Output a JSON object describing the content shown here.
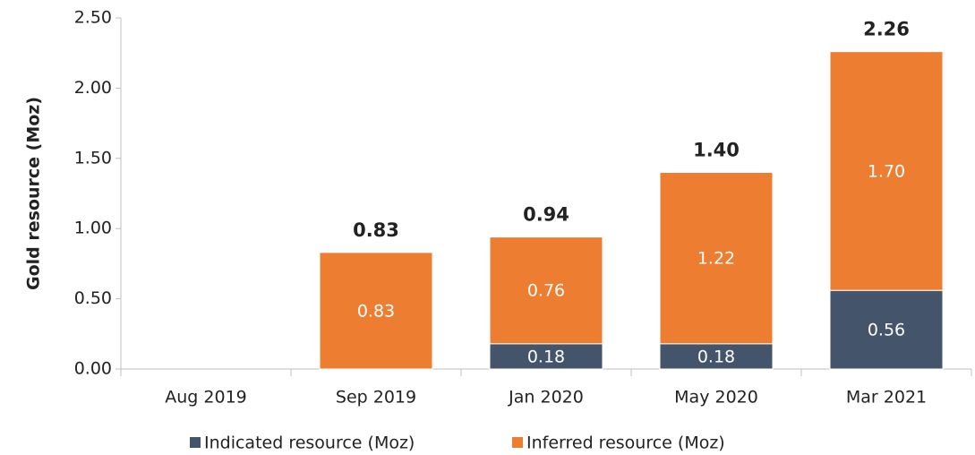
{
  "chart_data": {
    "type": "stacked_bar",
    "y_label": "Gold resource (Moz)",
    "categories": [
      "Aug 2019",
      "Sep 2019",
      "Jan 2020",
      "May 2020",
      "Mar 2021"
    ],
    "series": [
      {
        "name": "Indicated resource (Moz)",
        "color": "#44546a",
        "values": [
          null,
          null,
          0.18,
          0.18,
          0.56
        ],
        "value_labels": [
          null,
          null,
          "0.18",
          "0.18",
          "0.56"
        ]
      },
      {
        "name": "Inferred resource (Moz)",
        "color": "#ed7d31",
        "values": [
          null,
          0.83,
          0.76,
          1.22,
          1.7
        ],
        "value_labels": [
          null,
          "0.83",
          "0.76",
          "1.22",
          "1.70"
        ]
      }
    ],
    "totals": [
      null,
      0.83,
      0.94,
      1.4,
      2.26
    ],
    "total_labels": [
      null,
      "0.83",
      "0.94",
      "1.40",
      "2.26"
    ],
    "ylim": [
      0,
      2.5
    ],
    "yticks": [
      {
        "value": 0,
        "label": "0.00"
      },
      {
        "value": 0.5,
        "label": "0.50"
      },
      {
        "value": 1,
        "label": "1.00"
      },
      {
        "value": 1.5,
        "label": "1.50"
      },
      {
        "value": 2,
        "label": "2.00"
      },
      {
        "value": 2.5,
        "label": "2.50"
      }
    ],
    "legend": "bottom"
  }
}
